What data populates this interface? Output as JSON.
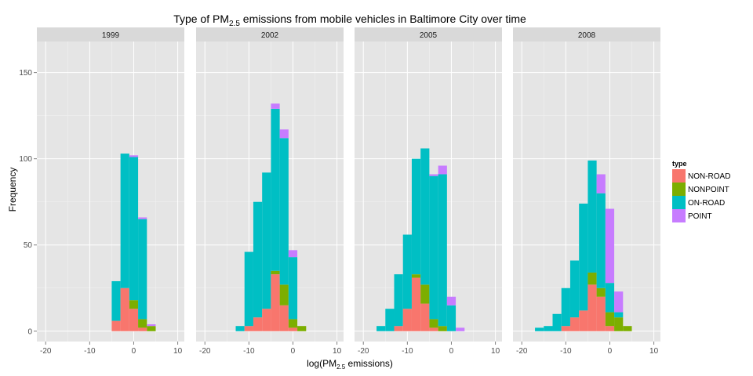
{
  "chart_data": {
    "type": "bar",
    "stacked": true,
    "title": {
      "prefix": "Type of PM",
      "subscript": "2.5",
      "suffix": " emissions from mobile vehicles in Baltimore City over time"
    },
    "xlabel": {
      "prefix": "log(PM",
      "subscript": "2.5",
      "suffix": " emissions)"
    },
    "ylabel": "Frequency",
    "xlim": [
      -22,
      11.5
    ],
    "ylim": [
      -6,
      168
    ],
    "x_ticks": [
      -20,
      -10,
      0,
      10
    ],
    "x_tick_labels": [
      "-20",
      "-10",
      "0",
      "10"
    ],
    "y_ticks": [
      0,
      50,
      100,
      150
    ],
    "y_tick_labels": [
      "0",
      "50",
      "100",
      "150"
    ],
    "bin_edges": [
      -17,
      -15,
      -13,
      -11,
      -9,
      -7,
      -5,
      -3,
      -1,
      1,
      3,
      5,
      7
    ],
    "grid": true,
    "legend": {
      "title": "type",
      "position": "right",
      "entries": [
        "NON-ROAD",
        "NONPOINT",
        "ON-ROAD",
        "POINT"
      ]
    },
    "colors": {
      "NON-ROAD": "#F8766D",
      "NONPOINT": "#7CAE00",
      "ON-ROAD": "#00BFC4",
      "POINT": "#C77CFF"
    },
    "panels": [
      {
        "label": "1999",
        "series": [
          {
            "name": "NON-ROAD",
            "values": [
              0,
              0,
              0,
              0,
              0,
              0,
              6,
              25,
              13,
              2,
              0,
              0
            ]
          },
          {
            "name": "NONPOINT",
            "values": [
              0,
              0,
              0,
              0,
              0,
              0,
              0,
              0,
              5,
              5,
              3,
              0
            ]
          },
          {
            "name": "ON-ROAD",
            "values": [
              0,
              0,
              0,
              0,
              0,
              0,
              23,
              78,
              83,
              58,
              0,
              0
            ]
          },
          {
            "name": "POINT",
            "values": [
              0,
              0,
              0,
              0,
              0,
              0,
              0,
              0,
              1,
              1,
              1,
              0
            ]
          }
        ]
      },
      {
        "label": "2002",
        "series": [
          {
            "name": "NON-ROAD",
            "values": [
              0,
              0,
              0,
              3,
              8,
              13,
              33,
              15,
              2,
              0,
              0,
              0
            ]
          },
          {
            "name": "NONPOINT",
            "values": [
              0,
              0,
              0,
              0,
              0,
              0,
              2,
              12,
              5,
              3,
              0,
              0
            ]
          },
          {
            "name": "ON-ROAD",
            "values": [
              0,
              0,
              3,
              43,
              67,
              79,
              94,
              85,
              36,
              0,
              0,
              0
            ]
          },
          {
            "name": "POINT",
            "values": [
              0,
              0,
              0,
              0,
              0,
              0,
              3,
              5,
              4,
              0,
              0,
              0
            ]
          }
        ]
      },
      {
        "label": "2005",
        "series": [
          {
            "name": "NON-ROAD",
            "values": [
              0,
              0,
              3,
              13,
              31,
              16,
              2,
              0,
              0,
              0,
              0,
              0
            ]
          },
          {
            "name": "NONPOINT",
            "values": [
              0,
              0,
              0,
              0,
              2,
              11,
              5,
              3,
              0,
              0,
              0,
              0
            ]
          },
          {
            "name": "ON-ROAD",
            "values": [
              3,
              13,
              30,
              43,
              67,
              79,
              83,
              88,
              15,
              0,
              0,
              0
            ]
          },
          {
            "name": "POINT",
            "values": [
              0,
              0,
              0,
              0,
              0,
              0,
              1,
              5,
              5,
              2,
              0,
              0
            ]
          }
        ]
      },
      {
        "label": "2008",
        "series": [
          {
            "name": "NON-ROAD",
            "values": [
              0,
              0,
              0,
              3,
              8,
              12,
              27,
              20,
              3,
              0,
              0,
              0
            ]
          },
          {
            "name": "NONPOINT",
            "values": [
              0,
              0,
              0,
              0,
              0,
              0,
              7,
              5,
              8,
              8,
              3,
              0
            ]
          },
          {
            "name": "ON-ROAD",
            "values": [
              2,
              3,
              10,
              22,
              33,
              62,
              65,
              55,
              17,
              3,
              0,
              0
            ]
          },
          {
            "name": "POINT",
            "values": [
              0,
              0,
              0,
              0,
              0,
              0,
              0,
              11,
              43,
              12,
              0,
              0
            ]
          }
        ]
      }
    ]
  }
}
